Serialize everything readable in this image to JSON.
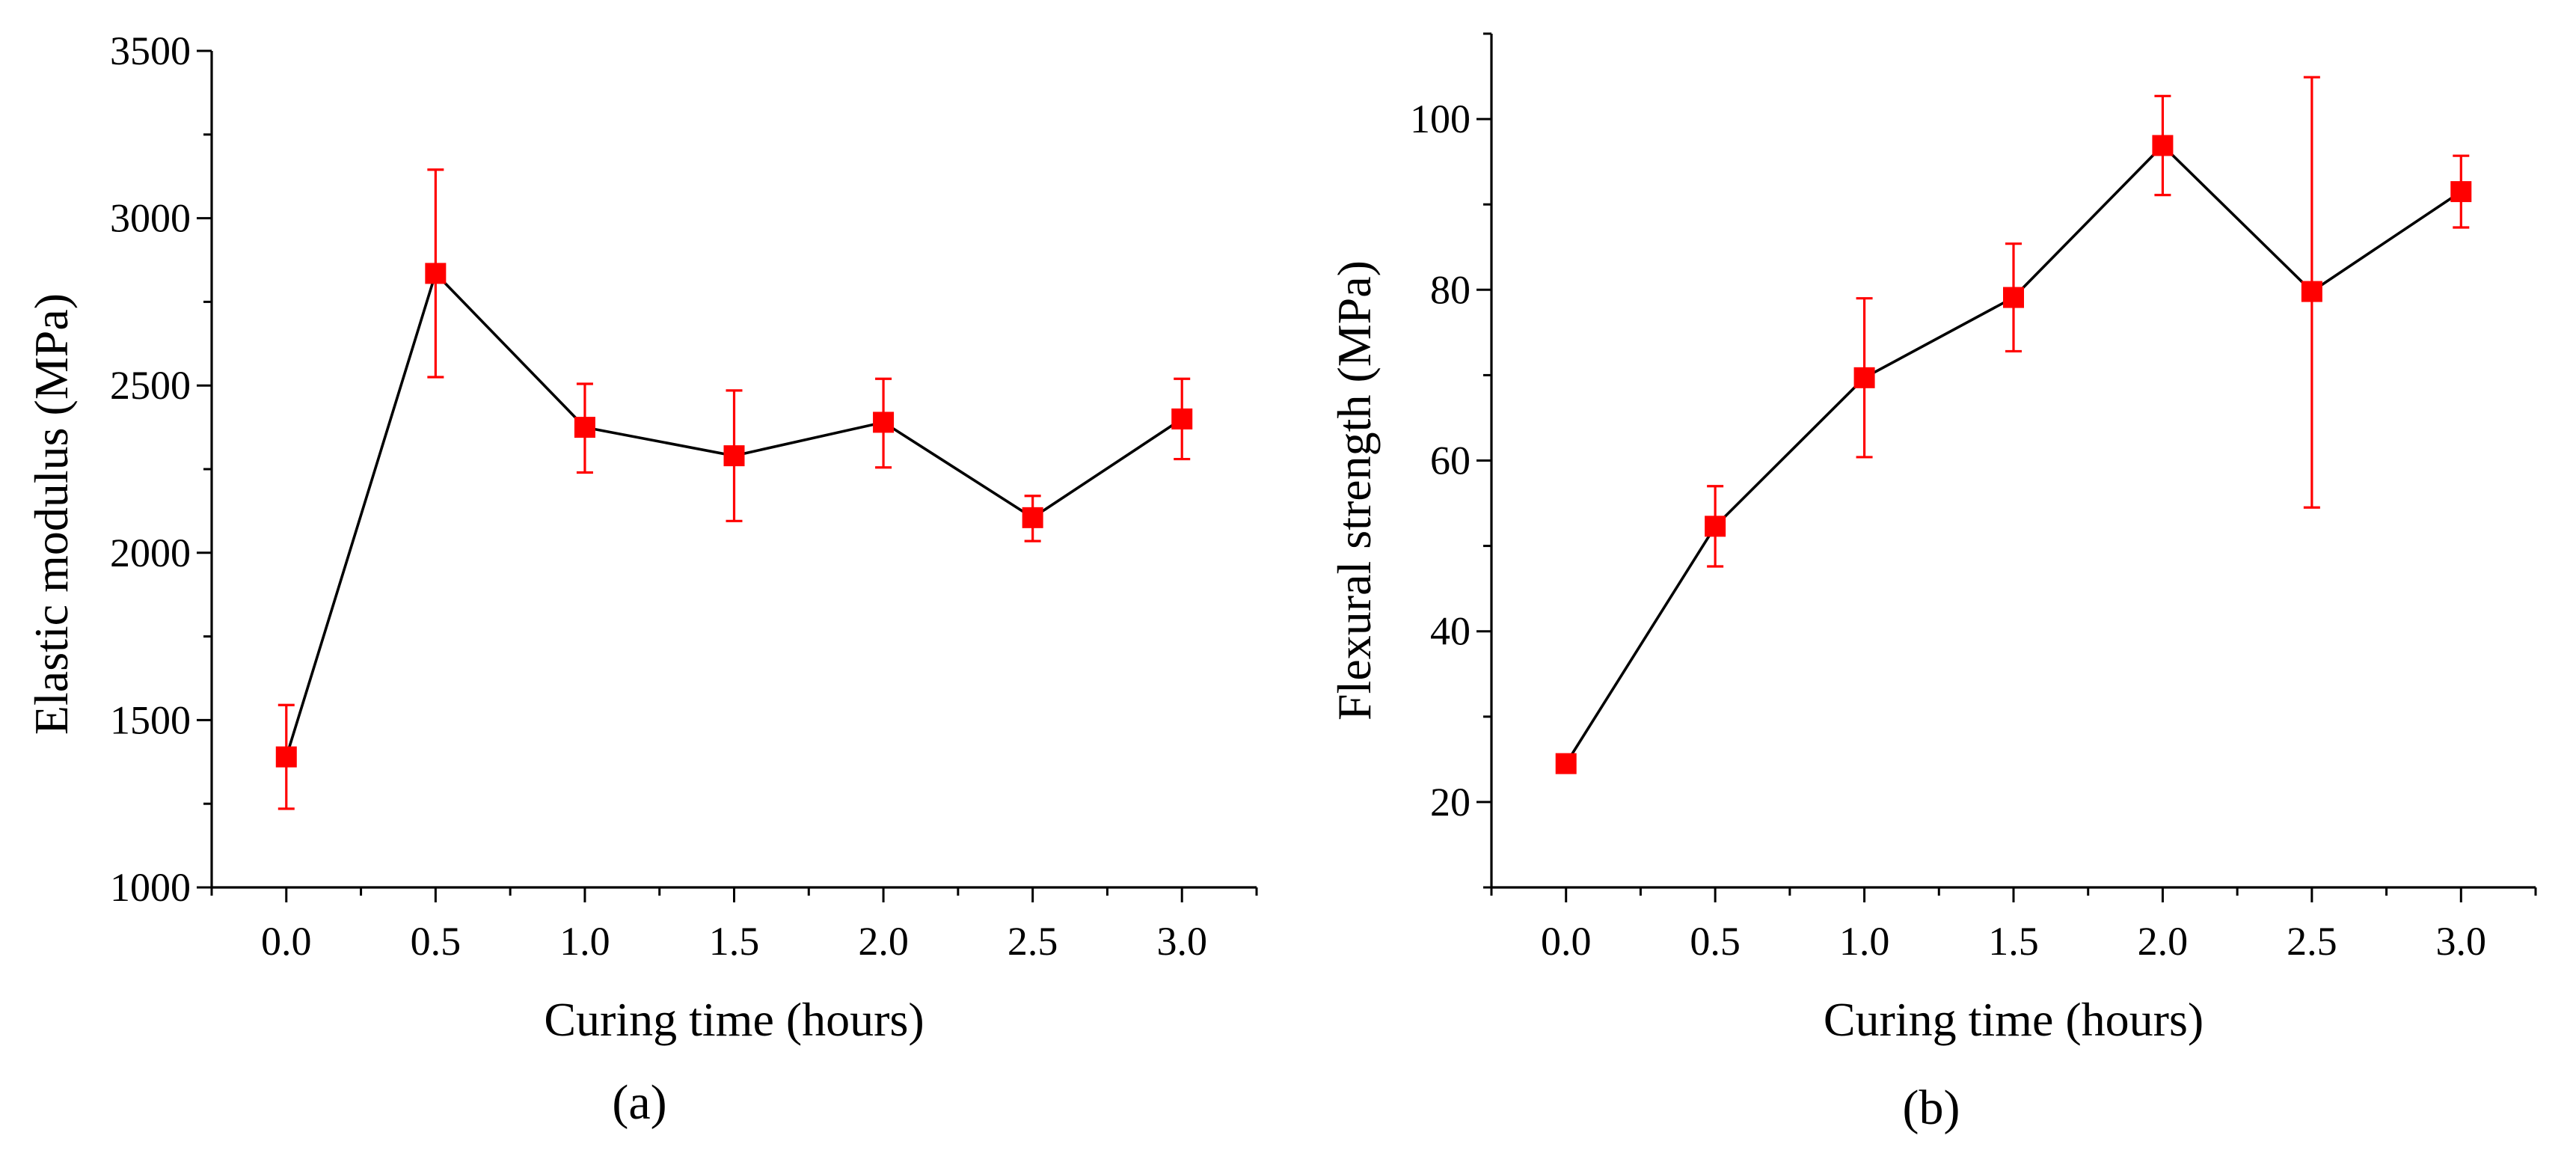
{
  "colors": {
    "marker": "#ff0000",
    "line": "#000000",
    "axis": "#000000",
    "background": "#ffffff"
  },
  "chart_data": [
    {
      "type": "line",
      "panel_label": "(a)",
      "title": "",
      "xlabel": "Curing time (hours)",
      "ylabel": "Elastic modulus (MPa)",
      "x": [
        0.0,
        0.5,
        1.0,
        1.5,
        2.0,
        2.5,
        3.0
      ],
      "x_tick_labels": [
        "0.0",
        "0.5",
        "1.0",
        "1.5",
        "2.0",
        "2.5",
        "3.0"
      ],
      "xlim": [
        -0.25,
        3.25
      ],
      "ylim": [
        1000,
        3500
      ],
      "y_ticks": [
        1000,
        1500,
        2000,
        2500,
        3000,
        3500
      ],
      "y_tick_labels": [
        "1000",
        "1500",
        "2000",
        "2500",
        "3000",
        "3500"
      ],
      "series": [
        {
          "name": "Elastic modulus",
          "values": [
            1390,
            2835,
            2375,
            2290,
            2390,
            2105,
            2400
          ],
          "error_low": [
            1235,
            2525,
            2240,
            2095,
            2255,
            2035,
            2280
          ],
          "error_high": [
            1545,
            3145,
            2505,
            2485,
            2520,
            2170,
            2520
          ]
        }
      ],
      "grid": false,
      "legend": "none"
    },
    {
      "type": "line",
      "panel_label": "(b)",
      "title": "",
      "xlabel": "Curing time (hours)",
      "ylabel": "Flexural strength (MPa)",
      "x": [
        0.0,
        0.5,
        1.0,
        1.5,
        2.0,
        2.5,
        3.0
      ],
      "x_tick_labels": [
        "0.0",
        "0.5",
        "1.0",
        "1.5",
        "2.0",
        "2.5",
        "3.0"
      ],
      "xlim": [
        -0.25,
        3.25
      ],
      "ylim": [
        10,
        110
      ],
      "y_ticks": [
        20,
        40,
        60,
        80,
        100
      ],
      "y_tick_labels": [
        "20",
        "40",
        "60",
        "80",
        "100"
      ],
      "series": [
        {
          "name": "Flexural strength",
          "values": [
            24.5,
            52.3,
            69.7,
            79.1,
            96.9,
            79.8,
            91.5
          ],
          "error_low": [
            23.8,
            47.6,
            60.4,
            72.8,
            91.1,
            54.5,
            87.3
          ],
          "error_high": [
            25.2,
            57.0,
            79.0,
            85.4,
            102.7,
            104.9,
            95.7
          ]
        }
      ],
      "grid": false,
      "legend": "none"
    }
  ]
}
